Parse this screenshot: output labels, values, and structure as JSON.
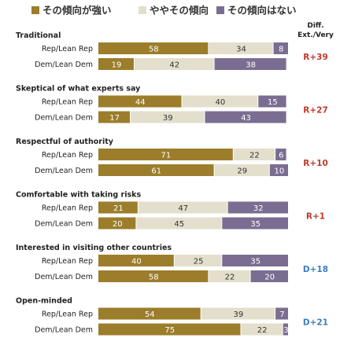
{
  "legend": [
    {
      "label": "その傾向が強い",
      "color": "#9c7d2b"
    },
    {
      "label": "ややその傾向",
      "color": "#e3dfcc"
    },
    {
      "label": "その傾向はない",
      "color": "#7b6d92"
    }
  ],
  "diff_header": [
    "Diff.",
    "Ext./Very"
  ],
  "colors": {
    "rep_diff": "#c0392b",
    "dem_diff": "#3c7dc0"
  },
  "chart_data": {
    "type": "bar",
    "stacked": true,
    "orientation": "horizontal",
    "series_names": [
      "その傾向が強い",
      "ややその傾向",
      "その傾向はない"
    ],
    "groups": [
      {
        "title": "Traditional",
        "diff": "R+39",
        "diff_party": "rep",
        "rows": [
          {
            "label": "Rep/Lean Rep",
            "values": [
              58,
              34,
              8
            ]
          },
          {
            "label": "Dem/Lean Dem",
            "values": [
              19,
              42,
              38
            ]
          }
        ]
      },
      {
        "title": "Skeptical of what experts say",
        "diff": "R+27",
        "diff_party": "rep",
        "rows": [
          {
            "label": "Rep/Lean Rep",
            "values": [
              44,
              40,
              15
            ]
          },
          {
            "label": "Dem/Lean Dem",
            "values": [
              17,
              39,
              43
            ]
          }
        ]
      },
      {
        "title": "Respectful of authority",
        "diff": "R+10",
        "diff_party": "rep",
        "rows": [
          {
            "label": "Rep/Lean Rep",
            "values": [
              71,
              22,
              6
            ]
          },
          {
            "label": "Dem/Lean Dem",
            "values": [
              61,
              29,
              10
            ]
          }
        ]
      },
      {
        "title": "Comfortable with taking risks",
        "diff": "R+1",
        "diff_party": "rep",
        "rows": [
          {
            "label": "Rep/Lean Rep",
            "values": [
              21,
              47,
              32
            ]
          },
          {
            "label": "Dem/Lean Dem",
            "values": [
              20,
              45,
              35
            ]
          }
        ]
      },
      {
        "title": "Interested in visiting other countries",
        "diff": "D+18",
        "diff_party": "dem",
        "rows": [
          {
            "label": "Rep/Lean Rep",
            "values": [
              40,
              25,
              35
            ]
          },
          {
            "label": "Dem/Lean Dem",
            "values": [
              58,
              22,
              20
            ]
          }
        ]
      },
      {
        "title": "Open-minded",
        "diff": "D+21",
        "diff_party": "dem",
        "rows": [
          {
            "label": "Rep/Lean Rep",
            "values": [
              54,
              39,
              7
            ]
          },
          {
            "label": "Dem/Lean Dem",
            "values": [
              75,
              22,
              3
            ]
          }
        ]
      }
    ]
  }
}
